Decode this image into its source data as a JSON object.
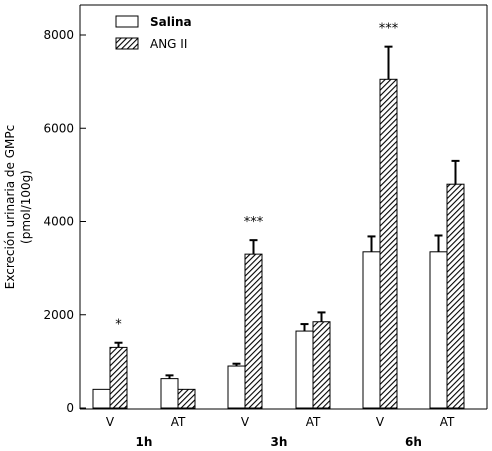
{
  "chart_data": {
    "type": "bar",
    "ylabel": "Excreción urinaria de GMPc",
    "yunit": "(pmol/100g)",
    "ylim": [
      0,
      8000
    ],
    "yticks": [
      0,
      2000,
      4000,
      6000,
      8000
    ],
    "groups": [
      {
        "label": "1h",
        "categories": [
          "V",
          "AT"
        ]
      },
      {
        "label": "3h",
        "categories": [
          "V",
          "AT"
        ]
      },
      {
        "label": "6h",
        "categories": [
          "V",
          "AT"
        ]
      }
    ],
    "categories": [
      "V",
      "AT",
      "V",
      "AT",
      "V",
      "AT"
    ],
    "series": [
      {
        "name": "Salina",
        "pattern": "solid-white",
        "values": [
          400,
          630,
          900,
          1650,
          3350,
          3350
        ],
        "errors": [
          0,
          70,
          50,
          150,
          330,
          350
        ]
      },
      {
        "name": "ANG II",
        "pattern": "hatched",
        "values": [
          1300,
          400,
          3300,
          1850,
          7050,
          4800
        ],
        "errors": [
          100,
          0,
          300,
          200,
          700,
          500
        ]
      }
    ],
    "annotations": [
      "*",
      "",
      "***",
      "",
      "***",
      ""
    ],
    "legend_position": "top-left",
    "grid": false
  }
}
